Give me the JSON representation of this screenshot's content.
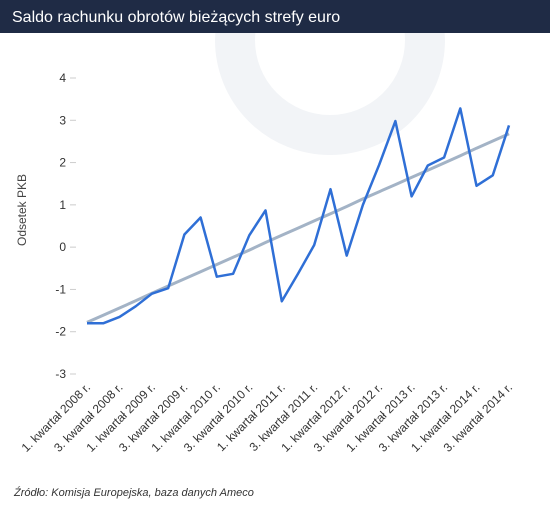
{
  "chart_data": {
    "type": "line",
    "title": "Saldo rachunku obrotów bieżących strefy euro",
    "y_label": "Odsetek PKB",
    "source": "Źródło: Komisja Europejska, baza danych Ameco",
    "categories": [
      "1. kwartał 2008 r.",
      null,
      "3. kwartał 2008 r.",
      null,
      "1. kwartał 2009 r.",
      null,
      "3. kwartał 2009 r.",
      null,
      "1. kwartał 2010 r.",
      null,
      "3. kwartał 2010 r.",
      null,
      "1. kwartał 2011 r.",
      null,
      "3. kwartał 2011 r.",
      null,
      "1. kwartał 2012 r.",
      null,
      "3. kwartał 2012 r.",
      null,
      "1. kwartał 2013 r.",
      null,
      "3. kwartał 2013 r.",
      null,
      "1. kwartał 2014 r.",
      null,
      "3. kwartał 2014 r."
    ],
    "series": [
      {
        "color": "#a3b3c6",
        "values": [
          -1.78,
          -1.61,
          -1.44,
          -1.27,
          -1.09,
          -0.92,
          -0.75,
          -0.58,
          -0.41,
          -0.24,
          -0.07,
          0.11,
          0.28,
          0.45,
          0.62,
          0.79,
          0.96,
          1.14,
          1.31,
          1.48,
          1.65,
          1.82,
          1.99,
          2.16,
          2.34,
          2.51,
          2.68
        ]
      },
      {
        "color": "#2f6fd6",
        "values": [
          -1.8,
          -1.8,
          -1.65,
          -1.4,
          -1.1,
          -0.97,
          0.3,
          0.7,
          -0.7,
          -0.63,
          0.28,
          0.87,
          -1.28,
          -0.63,
          0.05,
          1.37,
          -0.2,
          1.0,
          1.95,
          2.98,
          1.2,
          1.93,
          2.12,
          3.28,
          1.45,
          1.7,
          2.88
        ]
      }
    ],
    "ylim": [
      -3,
      4
    ],
    "yticks": [
      -3,
      -2,
      -1,
      0,
      1,
      2,
      3,
      4
    ]
  }
}
